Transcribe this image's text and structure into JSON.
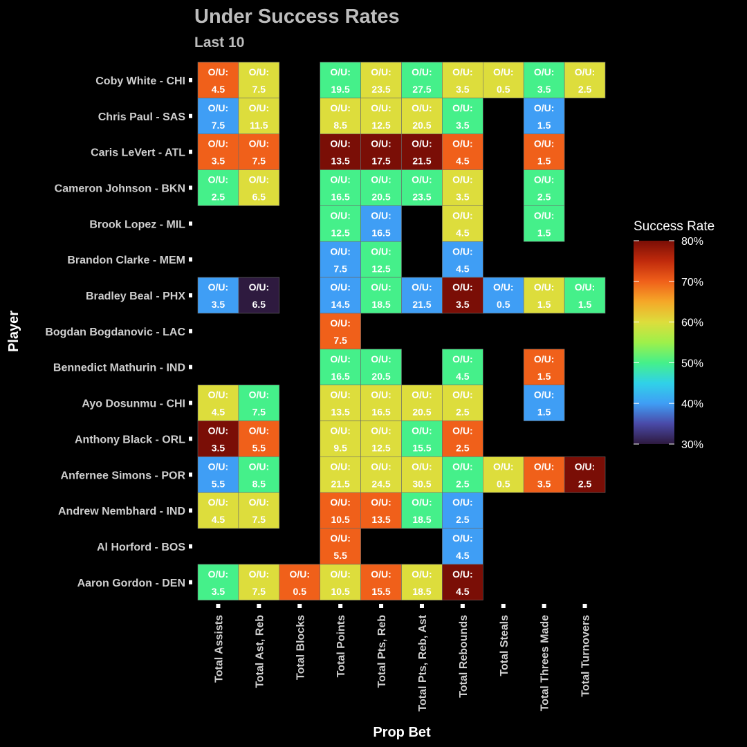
{
  "chart_data": {
    "type": "heatmap",
    "title": "Under Success Rates",
    "subtitle": "Last 10",
    "xlabel": "Prop Bet",
    "ylabel": "Player",
    "legend": {
      "title": "Success Rate",
      "placement": "right",
      "range": [
        30,
        80
      ],
      "ticks": [
        "30%",
        "40%",
        "50%",
        "60%",
        "70%",
        "80%"
      ],
      "tick_values": [
        30,
        40,
        50,
        60,
        70,
        80
      ]
    },
    "cell_prefix": "O/U:",
    "x_categories": [
      "Total Assists",
      "Total Ast, Reb",
      "Total Blocks",
      "Total Points",
      "Total Pts, Reb",
      "Total Pts, Reb, Ast",
      "Total Rebounds",
      "Total Steals",
      "Total Threes Made",
      "Total Turnovers"
    ],
    "y_categories": [
      "Coby White - CHI",
      "Chris Paul - SAS",
      "Caris LeVert - ATL",
      "Cameron Johnson - BKN",
      "Brook Lopez - MIL",
      "Brandon Clarke - MEM",
      "Bradley Beal - PHX",
      "Bogdan Bogdanovic - LAC",
      "Bennedict Mathurin - IND",
      "Ayo Dosunmu - CHI",
      "Anthony Black - ORL",
      "Anfernee Simons - POR",
      "Andrew Nembhard - IND",
      "Al Horford - BOS",
      "Aaron Gordon - DEN"
    ],
    "cells": [
      {
        "player": "Coby White - CHI",
        "prop": "Total Assists",
        "line": "4.5",
        "rate": 70
      },
      {
        "player": "Coby White - CHI",
        "prop": "Total Ast, Reb",
        "line": "7.5",
        "rate": 60
      },
      {
        "player": "Coby White - CHI",
        "prop": "Total Points",
        "line": "19.5",
        "rate": 50
      },
      {
        "player": "Coby White - CHI",
        "prop": "Total Pts, Reb",
        "line": "23.5",
        "rate": 60
      },
      {
        "player": "Coby White - CHI",
        "prop": "Total Pts, Reb, Ast",
        "line": "27.5",
        "rate": 50
      },
      {
        "player": "Coby White - CHI",
        "prop": "Total Rebounds",
        "line": "3.5",
        "rate": 60
      },
      {
        "player": "Coby White - CHI",
        "prop": "Total Steals",
        "line": "0.5",
        "rate": 60
      },
      {
        "player": "Coby White - CHI",
        "prop": "Total Threes Made",
        "line": "3.5",
        "rate": 50
      },
      {
        "player": "Coby White - CHI",
        "prop": "Total Turnovers",
        "line": "2.5",
        "rate": 60
      },
      {
        "player": "Chris Paul - SAS",
        "prop": "Total Assists",
        "line": "7.5",
        "rate": 40
      },
      {
        "player": "Chris Paul - SAS",
        "prop": "Total Ast, Reb",
        "line": "11.5",
        "rate": 60
      },
      {
        "player": "Chris Paul - SAS",
        "prop": "Total Points",
        "line": "8.5",
        "rate": 60
      },
      {
        "player": "Chris Paul - SAS",
        "prop": "Total Pts, Reb",
        "line": "12.5",
        "rate": 60
      },
      {
        "player": "Chris Paul - SAS",
        "prop": "Total Pts, Reb, Ast",
        "line": "20.5",
        "rate": 60
      },
      {
        "player": "Chris Paul - SAS",
        "prop": "Total Rebounds",
        "line": "3.5",
        "rate": 50
      },
      {
        "player": "Chris Paul - SAS",
        "prop": "Total Threes Made",
        "line": "1.5",
        "rate": 40
      },
      {
        "player": "Caris LeVert - ATL",
        "prop": "Total Assists",
        "line": "3.5",
        "rate": 70
      },
      {
        "player": "Caris LeVert - ATL",
        "prop": "Total Ast, Reb",
        "line": "7.5",
        "rate": 70
      },
      {
        "player": "Caris LeVert - ATL",
        "prop": "Total Points",
        "line": "13.5",
        "rate": 80
      },
      {
        "player": "Caris LeVert - ATL",
        "prop": "Total Pts, Reb",
        "line": "17.5",
        "rate": 80
      },
      {
        "player": "Caris LeVert - ATL",
        "prop": "Total Pts, Reb, Ast",
        "line": "21.5",
        "rate": 80
      },
      {
        "player": "Caris LeVert - ATL",
        "prop": "Total Rebounds",
        "line": "4.5",
        "rate": 70
      },
      {
        "player": "Caris LeVert - ATL",
        "prop": "Total Threes Made",
        "line": "1.5",
        "rate": 70
      },
      {
        "player": "Cameron Johnson - BKN",
        "prop": "Total Assists",
        "line": "2.5",
        "rate": 50
      },
      {
        "player": "Cameron Johnson - BKN",
        "prop": "Total Ast, Reb",
        "line": "6.5",
        "rate": 60
      },
      {
        "player": "Cameron Johnson - BKN",
        "prop": "Total Points",
        "line": "16.5",
        "rate": 50
      },
      {
        "player": "Cameron Johnson - BKN",
        "prop": "Total Pts, Reb",
        "line": "20.5",
        "rate": 50
      },
      {
        "player": "Cameron Johnson - BKN",
        "prop": "Total Pts, Reb, Ast",
        "line": "23.5",
        "rate": 50
      },
      {
        "player": "Cameron Johnson - BKN",
        "prop": "Total Rebounds",
        "line": "3.5",
        "rate": 60
      },
      {
        "player": "Cameron Johnson - BKN",
        "prop": "Total Threes Made",
        "line": "2.5",
        "rate": 50
      },
      {
        "player": "Brook Lopez - MIL",
        "prop": "Total Points",
        "line": "12.5",
        "rate": 50
      },
      {
        "player": "Brook Lopez - MIL",
        "prop": "Total Pts, Reb",
        "line": "16.5",
        "rate": 40
      },
      {
        "player": "Brook Lopez - MIL",
        "prop": "Total Rebounds",
        "line": "4.5",
        "rate": 60
      },
      {
        "player": "Brook Lopez - MIL",
        "prop": "Total Threes Made",
        "line": "1.5",
        "rate": 50
      },
      {
        "player": "Brandon Clarke - MEM",
        "prop": "Total Points",
        "line": "7.5",
        "rate": 40
      },
      {
        "player": "Brandon Clarke - MEM",
        "prop": "Total Pts, Reb",
        "line": "12.5",
        "rate": 50
      },
      {
        "player": "Brandon Clarke - MEM",
        "prop": "Total Rebounds",
        "line": "4.5",
        "rate": 40
      },
      {
        "player": "Bradley Beal - PHX",
        "prop": "Total Assists",
        "line": "3.5",
        "rate": 40
      },
      {
        "player": "Bradley Beal - PHX",
        "prop": "Total Ast, Reb",
        "line": "6.5",
        "rate": 30
      },
      {
        "player": "Bradley Beal - PHX",
        "prop": "Total Points",
        "line": "14.5",
        "rate": 40
      },
      {
        "player": "Bradley Beal - PHX",
        "prop": "Total Pts, Reb",
        "line": "18.5",
        "rate": 50
      },
      {
        "player": "Bradley Beal - PHX",
        "prop": "Total Pts, Reb, Ast",
        "line": "21.5",
        "rate": 40
      },
      {
        "player": "Bradley Beal - PHX",
        "prop": "Total Rebounds",
        "line": "3.5",
        "rate": 80
      },
      {
        "player": "Bradley Beal - PHX",
        "prop": "Total Steals",
        "line": "0.5",
        "rate": 40
      },
      {
        "player": "Bradley Beal - PHX",
        "prop": "Total Threes Made",
        "line": "1.5",
        "rate": 60
      },
      {
        "player": "Bradley Beal - PHX",
        "prop": "Total Turnovers",
        "line": "1.5",
        "rate": 50
      },
      {
        "player": "Bogdan Bogdanovic - LAC",
        "prop": "Total Points",
        "line": "7.5",
        "rate": 70
      },
      {
        "player": "Bennedict Mathurin - IND",
        "prop": "Total Points",
        "line": "16.5",
        "rate": 50
      },
      {
        "player": "Bennedict Mathurin - IND",
        "prop": "Total Pts, Reb",
        "line": "20.5",
        "rate": 50
      },
      {
        "player": "Bennedict Mathurin - IND",
        "prop": "Total Rebounds",
        "line": "4.5",
        "rate": 50
      },
      {
        "player": "Bennedict Mathurin - IND",
        "prop": "Total Threes Made",
        "line": "1.5",
        "rate": 70
      },
      {
        "player": "Ayo Dosunmu - CHI",
        "prop": "Total Assists",
        "line": "4.5",
        "rate": 60
      },
      {
        "player": "Ayo Dosunmu - CHI",
        "prop": "Total Ast, Reb",
        "line": "7.5",
        "rate": 50
      },
      {
        "player": "Ayo Dosunmu - CHI",
        "prop": "Total Points",
        "line": "13.5",
        "rate": 60
      },
      {
        "player": "Ayo Dosunmu - CHI",
        "prop": "Total Pts, Reb",
        "line": "16.5",
        "rate": 60
      },
      {
        "player": "Ayo Dosunmu - CHI",
        "prop": "Total Pts, Reb, Ast",
        "line": "20.5",
        "rate": 60
      },
      {
        "player": "Ayo Dosunmu - CHI",
        "prop": "Total Rebounds",
        "line": "2.5",
        "rate": 60
      },
      {
        "player": "Ayo Dosunmu - CHI",
        "prop": "Total Threes Made",
        "line": "1.5",
        "rate": 40
      },
      {
        "player": "Anthony Black - ORL",
        "prop": "Total Assists",
        "line": "3.5",
        "rate": 80
      },
      {
        "player": "Anthony Black - ORL",
        "prop": "Total Ast, Reb",
        "line": "5.5",
        "rate": 70
      },
      {
        "player": "Anthony Black - ORL",
        "prop": "Total Points",
        "line": "9.5",
        "rate": 60
      },
      {
        "player": "Anthony Black - ORL",
        "prop": "Total Pts, Reb",
        "line": "12.5",
        "rate": 60
      },
      {
        "player": "Anthony Black - ORL",
        "prop": "Total Pts, Reb, Ast",
        "line": "15.5",
        "rate": 50
      },
      {
        "player": "Anthony Black - ORL",
        "prop": "Total Rebounds",
        "line": "2.5",
        "rate": 70
      },
      {
        "player": "Anfernee Simons - POR",
        "prop": "Total Assists",
        "line": "5.5",
        "rate": 40
      },
      {
        "player": "Anfernee Simons - POR",
        "prop": "Total Ast, Reb",
        "line": "8.5",
        "rate": 50
      },
      {
        "player": "Anfernee Simons - POR",
        "prop": "Total Points",
        "line": "21.5",
        "rate": 60
      },
      {
        "player": "Anfernee Simons - POR",
        "prop": "Total Pts, Reb",
        "line": "24.5",
        "rate": 60
      },
      {
        "player": "Anfernee Simons - POR",
        "prop": "Total Pts, Reb, Ast",
        "line": "30.5",
        "rate": 60
      },
      {
        "player": "Anfernee Simons - POR",
        "prop": "Total Rebounds",
        "line": "2.5",
        "rate": 50
      },
      {
        "player": "Anfernee Simons - POR",
        "prop": "Total Steals",
        "line": "0.5",
        "rate": 60
      },
      {
        "player": "Anfernee Simons - POR",
        "prop": "Total Threes Made",
        "line": "3.5",
        "rate": 70
      },
      {
        "player": "Anfernee Simons - POR",
        "prop": "Total Turnovers",
        "line": "2.5",
        "rate": 80
      },
      {
        "player": "Andrew Nembhard - IND",
        "prop": "Total Assists",
        "line": "4.5",
        "rate": 60
      },
      {
        "player": "Andrew Nembhard - IND",
        "prop": "Total Ast, Reb",
        "line": "7.5",
        "rate": 60
      },
      {
        "player": "Andrew Nembhard - IND",
        "prop": "Total Points",
        "line": "10.5",
        "rate": 70
      },
      {
        "player": "Andrew Nembhard - IND",
        "prop": "Total Pts, Reb",
        "line": "13.5",
        "rate": 70
      },
      {
        "player": "Andrew Nembhard - IND",
        "prop": "Total Pts, Reb, Ast",
        "line": "18.5",
        "rate": 50
      },
      {
        "player": "Andrew Nembhard - IND",
        "prop": "Total Rebounds",
        "line": "2.5",
        "rate": 40
      },
      {
        "player": "Al Horford - BOS",
        "prop": "Total Points",
        "line": "5.5",
        "rate": 70
      },
      {
        "player": "Al Horford - BOS",
        "prop": "Total Rebounds",
        "line": "4.5",
        "rate": 40
      },
      {
        "player": "Aaron Gordon - DEN",
        "prop": "Total Assists",
        "line": "3.5",
        "rate": 50
      },
      {
        "player": "Aaron Gordon - DEN",
        "prop": "Total Ast, Reb",
        "line": "7.5",
        "rate": 60
      },
      {
        "player": "Aaron Gordon - DEN",
        "prop": "Total Blocks",
        "line": "0.5",
        "rate": 70
      },
      {
        "player": "Aaron Gordon - DEN",
        "prop": "Total Points",
        "line": "10.5",
        "rate": 60
      },
      {
        "player": "Aaron Gordon - DEN",
        "prop": "Total Pts, Reb",
        "line": "15.5",
        "rate": 70
      },
      {
        "player": "Aaron Gordon - DEN",
        "prop": "Total Pts, Reb, Ast",
        "line": "18.5",
        "rate": 60
      },
      {
        "player": "Aaron Gordon - DEN",
        "prop": "Total Rebounds",
        "line": "4.5",
        "rate": 80
      }
    ],
    "colors": {
      "30": "#2e1a3f",
      "40": "#3f9ef5",
      "50": "#45f08a",
      "60": "#dddd3c",
      "70": "#f0601a",
      "80": "#7a0e06"
    },
    "grid": false
  }
}
